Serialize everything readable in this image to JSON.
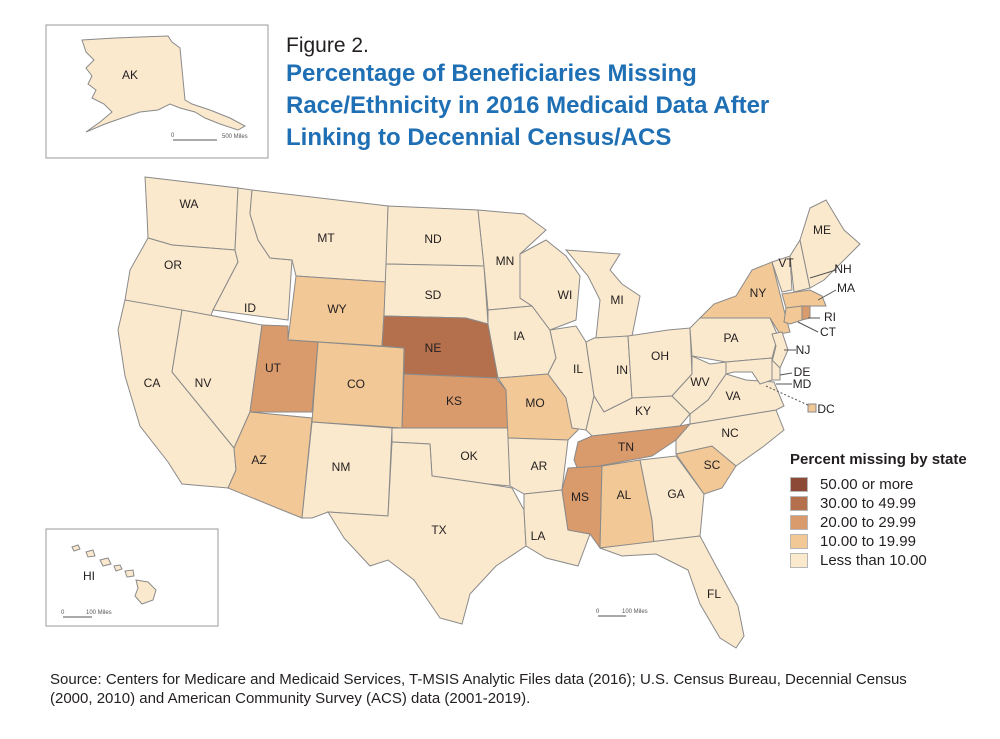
{
  "figure": {
    "label": "Figure 2.",
    "title": "Percentage of Beneficiaries Missing Race/Ethnicity in 2016 Medicaid Data After Linking to Decennial Census/ACS"
  },
  "legend": {
    "title": "Percent missing by state",
    "classes": [
      {
        "label": "50.00 or more",
        "color": "#8c4a36"
      },
      {
        "label": "30.00 to 49.99",
        "color": "#b46f4c"
      },
      {
        "label": "20.00 to 29.99",
        "color": "#d99a6c"
      },
      {
        "label": "10.00 to 19.99",
        "color": "#f2c896"
      },
      {
        "label": "Less than 10.00",
        "color": "#fbe9cd"
      }
    ]
  },
  "insets": {
    "alaska": {
      "label": "AK",
      "scale_zero": "0",
      "scale_text": "500 Miles"
    },
    "hawaii": {
      "label": "HI",
      "scale_zero": "0",
      "scale_text": "100 Miles"
    }
  },
  "main_scale": {
    "zero": "0",
    "text": "100 Miles"
  },
  "states": [
    {
      "abbr": "WA",
      "class": 4
    },
    {
      "abbr": "OR",
      "class": 4
    },
    {
      "abbr": "CA",
      "class": 4
    },
    {
      "abbr": "ID",
      "class": 4
    },
    {
      "abbr": "NV",
      "class": 4
    },
    {
      "abbr": "MT",
      "class": 4
    },
    {
      "abbr": "WY",
      "class": 3
    },
    {
      "abbr": "UT",
      "class": 2
    },
    {
      "abbr": "AZ",
      "class": 3
    },
    {
      "abbr": "CO",
      "class": 3
    },
    {
      "abbr": "NM",
      "class": 4
    },
    {
      "abbr": "ND",
      "class": 4
    },
    {
      "abbr": "SD",
      "class": 4
    },
    {
      "abbr": "NE",
      "class": 1
    },
    {
      "abbr": "KS",
      "class": 2
    },
    {
      "abbr": "OK",
      "class": 4
    },
    {
      "abbr": "TX",
      "class": 4
    },
    {
      "abbr": "MN",
      "class": 4
    },
    {
      "abbr": "IA",
      "class": 4
    },
    {
      "abbr": "MO",
      "class": 3
    },
    {
      "abbr": "AR",
      "class": 4
    },
    {
      "abbr": "LA",
      "class": 4
    },
    {
      "abbr": "WI",
      "class": 4
    },
    {
      "abbr": "IL",
      "class": 4
    },
    {
      "abbr": "MI",
      "class": 4
    },
    {
      "abbr": "IN",
      "class": 4
    },
    {
      "abbr": "OH",
      "class": 4
    },
    {
      "abbr": "KY",
      "class": 4
    },
    {
      "abbr": "TN",
      "class": 2
    },
    {
      "abbr": "MS",
      "class": 2
    },
    {
      "abbr": "AL",
      "class": 3
    },
    {
      "abbr": "GA",
      "class": 4
    },
    {
      "abbr": "FL",
      "class": 4
    },
    {
      "abbr": "SC",
      "class": 3
    },
    {
      "abbr": "NC",
      "class": 4
    },
    {
      "abbr": "VA",
      "class": 4
    },
    {
      "abbr": "WV",
      "class": 4
    },
    {
      "abbr": "PA",
      "class": 4
    },
    {
      "abbr": "NY",
      "class": 3
    },
    {
      "abbr": "VT",
      "class": 4
    },
    {
      "abbr": "NH",
      "class": 4
    },
    {
      "abbr": "ME",
      "class": 4
    },
    {
      "abbr": "MA",
      "class": 3
    },
    {
      "abbr": "RI",
      "class": 2
    },
    {
      "abbr": "CT",
      "class": 3
    },
    {
      "abbr": "NJ",
      "class": 4
    },
    {
      "abbr": "DE",
      "class": 4
    },
    {
      "abbr": "MD",
      "class": 4
    },
    {
      "abbr": "DC",
      "class": 3
    },
    {
      "abbr": "AK",
      "class": 4
    },
    {
      "abbr": "HI",
      "class": 4
    }
  ],
  "source": "Source: Centers for Medicare and Medicaid Services, T-MSIS Analytic Files data (2016); U.S. Census Bureau, Decennial Census (2000, 2010) and American Community Survey (ACS) data (2001-2019)."
}
